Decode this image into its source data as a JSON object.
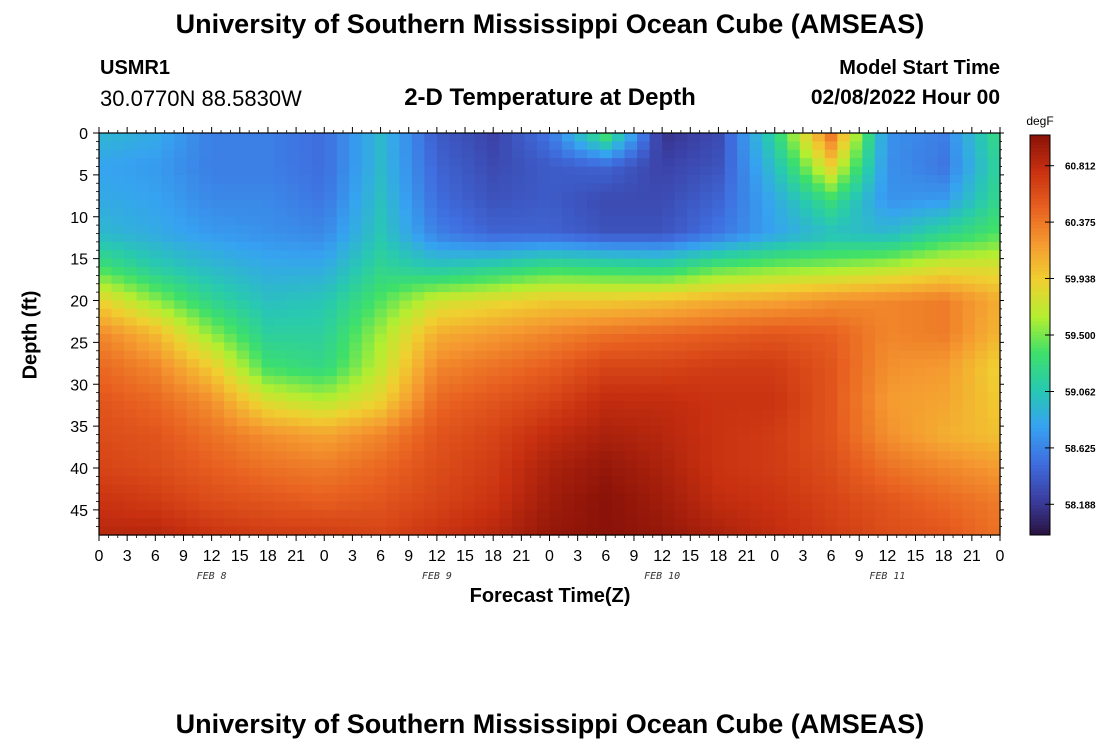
{
  "header": {
    "title": "University of Southern Mississippi Ocean Cube (AMSEAS)",
    "station": "USMR1",
    "coordinates": "30.0770N  88.5830W",
    "subtitle": "2-D Temperature at Depth",
    "model_start_label": "Model Start Time",
    "model_start_value": "02/08/2022 Hour 00"
  },
  "footer": {
    "title": "University of Southern Mississippi Ocean Cube (AMSEAS)"
  },
  "chart_data": {
    "type": "heatmap",
    "ylabel": "Depth (ft)",
    "xlabel": "Forecast Time(Z)",
    "x_hours_range": [
      0,
      96
    ],
    "y_depth_range": [
      0,
      48
    ],
    "y_ticks": [
      "0",
      "5",
      "10",
      "15",
      "20",
      "25",
      "30",
      "35",
      "40",
      "45"
    ],
    "x_tick_labels": [
      "0",
      "3",
      "6",
      "9",
      "12",
      "15",
      "18",
      "21",
      "0",
      "3",
      "6",
      "9",
      "12",
      "15",
      "18",
      "21",
      "0",
      "3",
      "6",
      "9",
      "12",
      "15",
      "18",
      "21",
      "0",
      "3",
      "6",
      "9",
      "12",
      "15",
      "18",
      "21",
      "0"
    ],
    "dates": [
      "FEB 8",
      "FEB 9",
      "FEB 10",
      "FEB 11"
    ],
    "colorbar": {
      "unit": "degF",
      "range": [
        57.95,
        61.05
      ],
      "tick_labels": [
        "60.812",
        "60.375",
        "59.938",
        "59.500",
        "59.062",
        "58.625",
        "58.188"
      ],
      "colors": [
        "#2a1240",
        "#3b3fa3",
        "#3f6fe0",
        "#36a3f0",
        "#28c9b0",
        "#3ee06a",
        "#b4ee30",
        "#f0d030",
        "#f59a30",
        "#e86020",
        "#c83010",
        "#8a1208"
      ]
    },
    "grid_hours": [
      0,
      6,
      12,
      18,
      24,
      30,
      36,
      42,
      48,
      54,
      60,
      66,
      72,
      78,
      84,
      90,
      96
    ],
    "grid_depths": [
      0,
      4,
      8,
      12,
      16,
      20,
      24,
      28,
      32,
      36,
      40,
      44,
      48
    ],
    "temperature_degF": [
      [
        58.95,
        58.85,
        58.6,
        58.6,
        58.5,
        58.95,
        58.4,
        58.25,
        58.55,
        59.4,
        58.15,
        58.3,
        59.2,
        60.4,
        58.7,
        58.6,
        59.3
      ],
      [
        58.8,
        58.75,
        58.6,
        58.6,
        58.5,
        58.95,
        58.45,
        58.3,
        58.4,
        58.45,
        58.25,
        58.35,
        59.0,
        59.9,
        58.7,
        58.55,
        59.2
      ],
      [
        58.85,
        58.8,
        58.65,
        58.65,
        58.55,
        59.0,
        58.5,
        58.35,
        58.4,
        58.3,
        58.3,
        58.45,
        58.85,
        59.3,
        58.7,
        58.75,
        59.25
      ],
      [
        58.95,
        58.85,
        58.75,
        58.7,
        58.65,
        59.05,
        58.6,
        58.45,
        58.45,
        58.35,
        58.35,
        58.55,
        58.8,
        59.0,
        58.95,
        59.2,
        59.4
      ],
      [
        59.35,
        59.1,
        58.95,
        58.85,
        58.85,
        59.2,
        59.05,
        59.15,
        59.3,
        59.25,
        59.2,
        59.4,
        59.5,
        59.55,
        59.65,
        59.8,
        59.8
      ],
      [
        59.9,
        59.55,
        59.2,
        59.0,
        59.05,
        59.4,
        59.75,
        59.85,
        59.95,
        59.95,
        60.0,
        60.1,
        60.15,
        60.25,
        60.3,
        60.35,
        60.1
      ],
      [
        60.3,
        60.05,
        59.55,
        59.15,
        59.15,
        59.6,
        60.1,
        60.2,
        60.3,
        60.4,
        60.45,
        60.5,
        60.55,
        60.5,
        60.3,
        60.35,
        60.05
      ],
      [
        60.45,
        60.3,
        59.95,
        59.35,
        59.25,
        59.7,
        60.3,
        60.4,
        60.5,
        60.65,
        60.65,
        60.7,
        60.7,
        60.55,
        60.25,
        60.2,
        59.9
      ],
      [
        60.55,
        60.45,
        60.25,
        59.8,
        59.65,
        59.9,
        60.45,
        60.55,
        60.65,
        60.8,
        60.8,
        60.75,
        60.75,
        60.55,
        60.2,
        60.15,
        59.95
      ],
      [
        60.6,
        60.55,
        60.4,
        60.25,
        60.15,
        60.3,
        60.55,
        60.65,
        60.8,
        60.9,
        60.85,
        60.75,
        60.7,
        60.55,
        60.25,
        60.1,
        60.0
      ],
      [
        60.65,
        60.6,
        60.5,
        60.4,
        60.35,
        60.45,
        60.6,
        60.7,
        60.9,
        61.0,
        60.9,
        60.75,
        60.7,
        60.6,
        60.4,
        60.3,
        60.2
      ],
      [
        60.75,
        60.7,
        60.6,
        60.55,
        60.5,
        60.55,
        60.65,
        60.75,
        60.95,
        61.05,
        60.95,
        60.8,
        60.75,
        60.65,
        60.55,
        60.45,
        60.35
      ],
      [
        60.85,
        60.85,
        60.75,
        60.7,
        60.7,
        60.65,
        60.75,
        60.85,
        61.0,
        61.05,
        61.0,
        60.9,
        60.8,
        60.7,
        60.6,
        60.55,
        60.4
      ]
    ]
  }
}
